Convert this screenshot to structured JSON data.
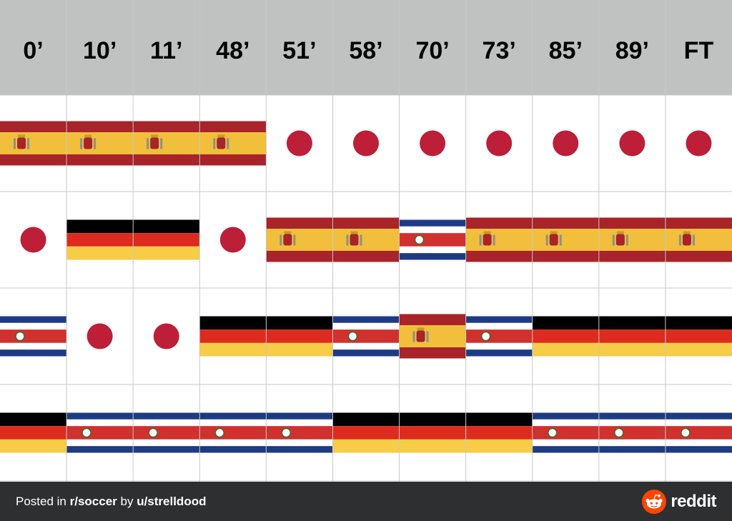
{
  "table": {
    "minutes": [
      "0’",
      "10’",
      "11’",
      "48’",
      "51’",
      "58’",
      "70’",
      "73’",
      "85’",
      "89’",
      "FT"
    ],
    "standings": [
      [
        "spain",
        "spain",
        "spain",
        "spain",
        "japan",
        "japan",
        "japan",
        "japan",
        "japan",
        "japan",
        "japan"
      ],
      [
        "japan",
        "germany",
        "germany",
        "japan",
        "spain",
        "spain",
        "costa-rica",
        "spain",
        "spain",
        "spain",
        "spain"
      ],
      [
        "costa-rica",
        "japan",
        "japan",
        "germany",
        "germany",
        "costa-rica",
        "spain",
        "costa-rica",
        "germany",
        "germany",
        "germany"
      ],
      [
        "germany",
        "costa-rica",
        "costa-rica",
        "costa-rica",
        "costa-rica",
        "germany",
        "germany",
        "germany",
        "costa-rica",
        "costa-rica",
        "costa-rica"
      ]
    ],
    "colors": {
      "header_bg": "#c0c1c1",
      "grid_line": "#c8c8c8",
      "spain_red": "#a8232a",
      "spain_yellow": "#f1bf3b",
      "japan_red": "#bc1f37",
      "germany_black": "#000000",
      "germany_red": "#dd2c1f",
      "germany_gold": "#f7cc46",
      "costa_rica_blue": "#1d3b83",
      "costa_rica_red": "#d0302e"
    }
  },
  "footer": {
    "posted_prefix": "Posted in ",
    "subreddit": "r/soccer",
    "by_text": " by ",
    "user_prefix": "u/",
    "username": "strelldood",
    "brand": "reddit",
    "brand_icon": "reddit-alien-icon",
    "background": "#2e2f31",
    "brand_color": "#ff4500"
  }
}
